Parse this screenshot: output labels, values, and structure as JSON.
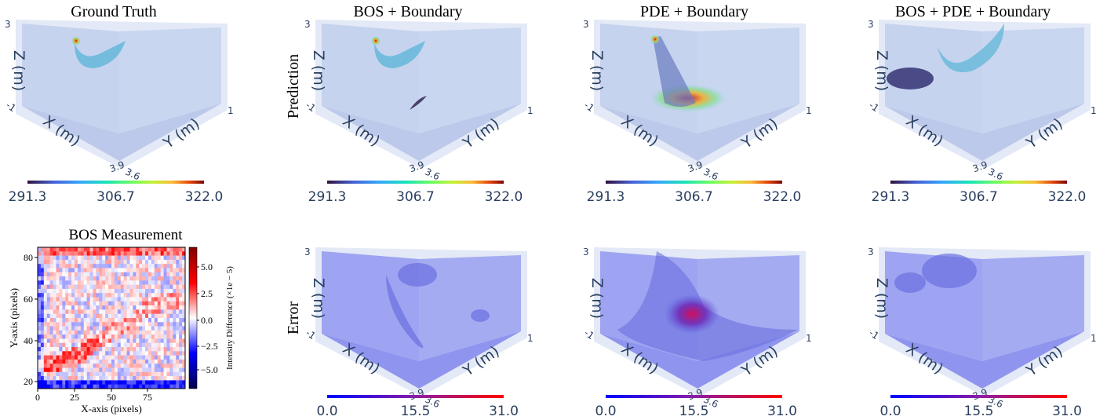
{
  "panels": [
    {
      "title": "Ground Truth",
      "colorbar_ticks": [
        "291.3",
        "306.7",
        "322.0"
      ]
    },
    {
      "title": "BOS + Boundary",
      "colorbar_ticks": [
        "291.3",
        "306.7",
        "322.0"
      ]
    },
    {
      "title": "PDE + Boundary",
      "colorbar_ticks": [
        "291.3",
        "306.7",
        "322.0"
      ]
    },
    {
      "title": "BOS + PDE + Boundary",
      "colorbar_ticks": [
        "291.3",
        "306.7",
        "322.0"
      ]
    }
  ],
  "error_panels": [
    {
      "colorbar_ticks": [
        "0.0",
        "15.5",
        "31.0"
      ]
    },
    {
      "colorbar_ticks": [
        "0.0",
        "15.5",
        "31.0"
      ]
    },
    {
      "colorbar_ticks": [
        "0.0",
        "15.5",
        "31.0"
      ]
    }
  ],
  "row_labels": {
    "prediction": "Prediction",
    "error": "Error"
  },
  "axis_labels": {
    "x": "X (m)",
    "y": "Y (m)",
    "z": "Z (m)"
  },
  "axis_ticks": {
    "z_top": "3",
    "x_start": "-1",
    "y_end": "1",
    "x_end": "3.9",
    "y_start": "3.6"
  },
  "bos": {
    "title": "BOS Measurement",
    "x_label": "X-axis (pixels)",
    "y_label": "Y-axis (pixels)",
    "x_ticks": [
      "0",
      "25",
      "50",
      "75"
    ],
    "y_ticks": [
      "20",
      "40",
      "60",
      "80"
    ],
    "colorbar_label": "Intensity Difference (×1e − 5)",
    "colorbar_ticks": [
      "5.0",
      "2.5",
      "0.0",
      "−2.5",
      "−5.0"
    ]
  }
}
